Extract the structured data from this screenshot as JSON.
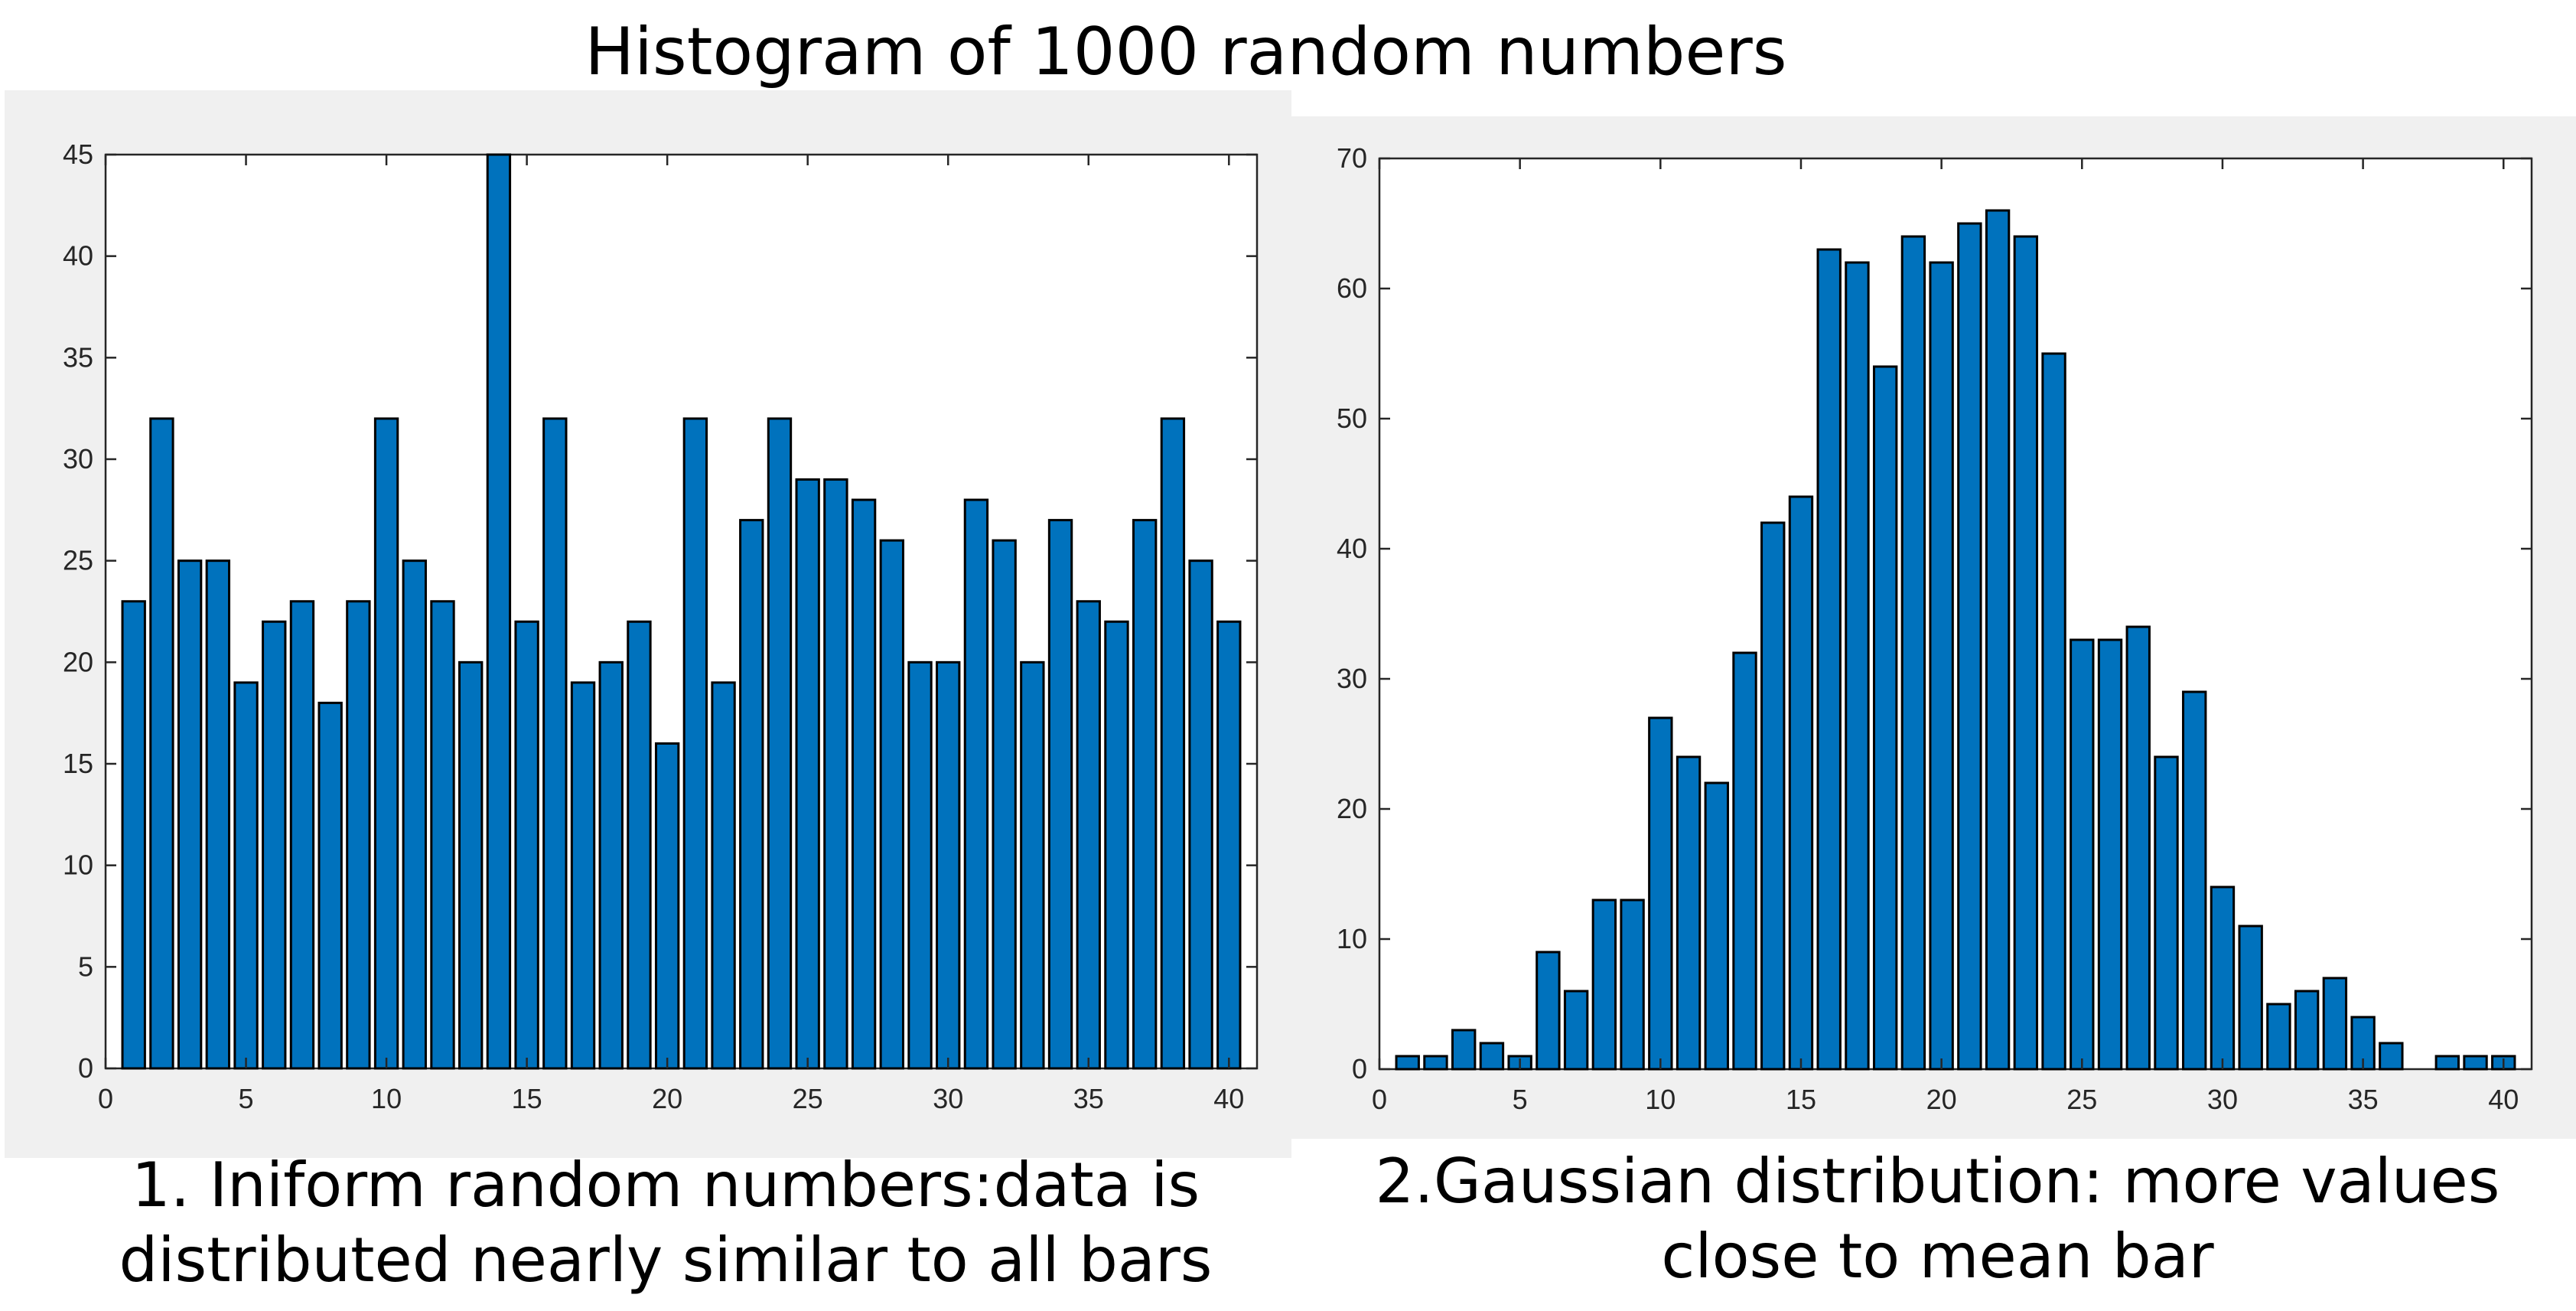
{
  "title": "Histogram of 1000 random numbers",
  "captions": [
    "1. Iniform random numbers:data is\ndistributed nearly similar to all bars",
    "2.Gaussian distribution: more values\nclose to mean bar"
  ],
  "chart_data": [
    {
      "type": "bar",
      "bar_color": "#0072BD",
      "background_color": "#f0f0f0",
      "x": [
        1,
        2,
        3,
        4,
        5,
        6,
        7,
        8,
        9,
        10,
        11,
        12,
        13,
        14,
        15,
        16,
        17,
        18,
        19,
        20,
        21,
        22,
        23,
        24,
        25,
        26,
        27,
        28,
        29,
        30,
        31,
        32,
        33,
        34,
        35,
        36,
        37,
        38,
        39,
        40
      ],
      "values": [
        23,
        32,
        25,
        25,
        19,
        22,
        23,
        18,
        23,
        32,
        25,
        23,
        20,
        45,
        22,
        32,
        19,
        20,
        22,
        16,
        32,
        19,
        27,
        32,
        29,
        29,
        28,
        26,
        20,
        20,
        28,
        26,
        20,
        27,
        23,
        22,
        27,
        32,
        25,
        22
      ],
      "xlim": [
        0,
        41
      ],
      "ylim": [
        0,
        45
      ],
      "xticks": [
        0,
        5,
        10,
        15,
        20,
        25,
        30,
        35,
        40
      ],
      "yticks": [
        0,
        5,
        10,
        15,
        20,
        25,
        30,
        35,
        40,
        45
      ],
      "grid": false
    },
    {
      "type": "bar",
      "bar_color": "#0072BD",
      "background_color": "#f0f0f0",
      "x": [
        1,
        2,
        3,
        4,
        5,
        6,
        7,
        8,
        9,
        10,
        11,
        12,
        13,
        14,
        15,
        16,
        17,
        18,
        19,
        20,
        21,
        22,
        23,
        24,
        25,
        26,
        27,
        28,
        29,
        30,
        31,
        32,
        33,
        34,
        35,
        36,
        37,
        38,
        39,
        40
      ],
      "values": [
        1,
        1,
        3,
        2,
        1,
        9,
        6,
        13,
        13,
        27,
        24,
        22,
        32,
        42,
        44,
        63,
        62,
        54,
        64,
        62,
        65,
        66,
        64,
        55,
        33,
        33,
        34,
        24,
        29,
        14,
        11,
        5,
        6,
        7,
        4,
        2,
        0,
        1,
        1,
        1
      ],
      "xlim": [
        0,
        41
      ],
      "ylim": [
        0,
        70
      ],
      "xticks": [
        0,
        5,
        10,
        15,
        20,
        25,
        30,
        35,
        40
      ],
      "yticks": [
        0,
        10,
        20,
        30,
        40,
        50,
        60,
        70
      ],
      "grid": false
    }
  ]
}
